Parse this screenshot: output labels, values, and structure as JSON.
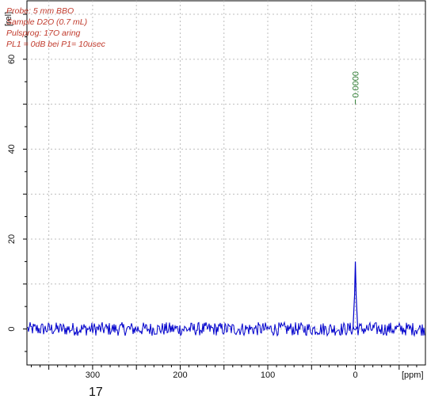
{
  "annotations": {
    "probe": "Probe:   5 mm BBO",
    "sample": "Sample   D2O (0.7 mL)",
    "pulsprog": "Pulsprog: 17O aring",
    "power": "PL1 = 0dB bei P1= 10usec"
  },
  "stray_text": "17",
  "chart_data": {
    "type": "line",
    "title": "",
    "xlabel": "[ppm]",
    "ylabel": "[rel]",
    "xlim": [
      375,
      -80
    ],
    "ylim": [
      -8,
      73
    ],
    "x_reversed": true,
    "x_ticks": [
      300,
      200,
      100,
      0
    ],
    "y_ticks": [
      0,
      20,
      40,
      60
    ],
    "grid": true,
    "line_color": "#0000cc",
    "peak_label_color": "#2e7d32",
    "annotation_color": "#c0392b",
    "peaks": [
      {
        "x": 0.0,
        "y": 15,
        "label": "0.0000",
        "label_y": 50
      }
    ],
    "baseline": {
      "y": 0,
      "noise_amplitude": 1.5,
      "x_range": [
        375,
        -80
      ]
    }
  }
}
